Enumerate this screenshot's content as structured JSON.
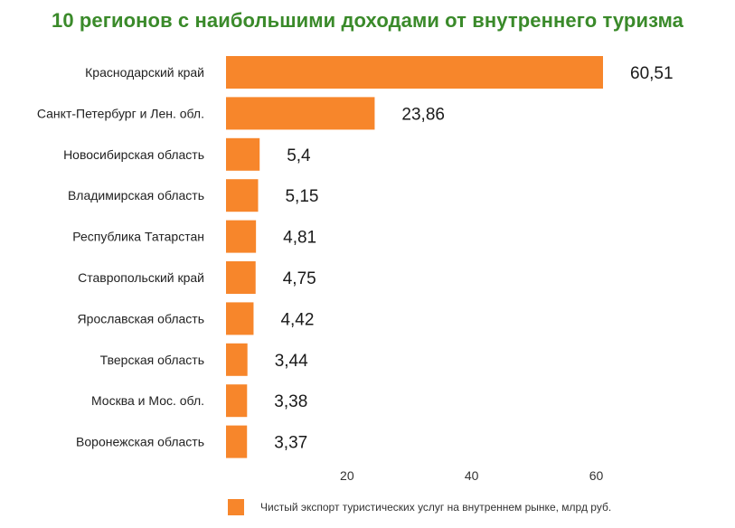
{
  "title": "10 регионов с наибольшими доходами от внутреннего туризма",
  "colors": {
    "title": "#3a8a2a",
    "bar": "#f7862b"
  },
  "chart_data": {
    "type": "bar",
    "orientation": "horizontal",
    "categories": [
      "Краснодарский край",
      "Санкт-Петербург и Лен. обл.",
      "Новосибирская область",
      "Владимирская область",
      "Республика Татарстан",
      "Ставропольский край",
      "Ярославская область",
      "Тверская область",
      "Москва и Мос. обл.",
      "Воронежская область"
    ],
    "series": [
      {
        "name": "Чистый экспорт туристических услуг на внутреннем рынке, млрд руб.",
        "values": [
          60.51,
          23.86,
          5.4,
          5.15,
          4.81,
          4.75,
          4.42,
          3.44,
          3.38,
          3.37
        ],
        "labels": [
          "60,51",
          "23,86",
          "5,4",
          "5,15",
          "4,81",
          "4,75",
          "4,42",
          "3,44",
          "3,38",
          "3,37"
        ]
      }
    ],
    "x_ticks": [
      "20",
      "40",
      "60"
    ],
    "xlim": [
      0,
      60.51
    ],
    "legend": "bottom",
    "grid": false
  }
}
